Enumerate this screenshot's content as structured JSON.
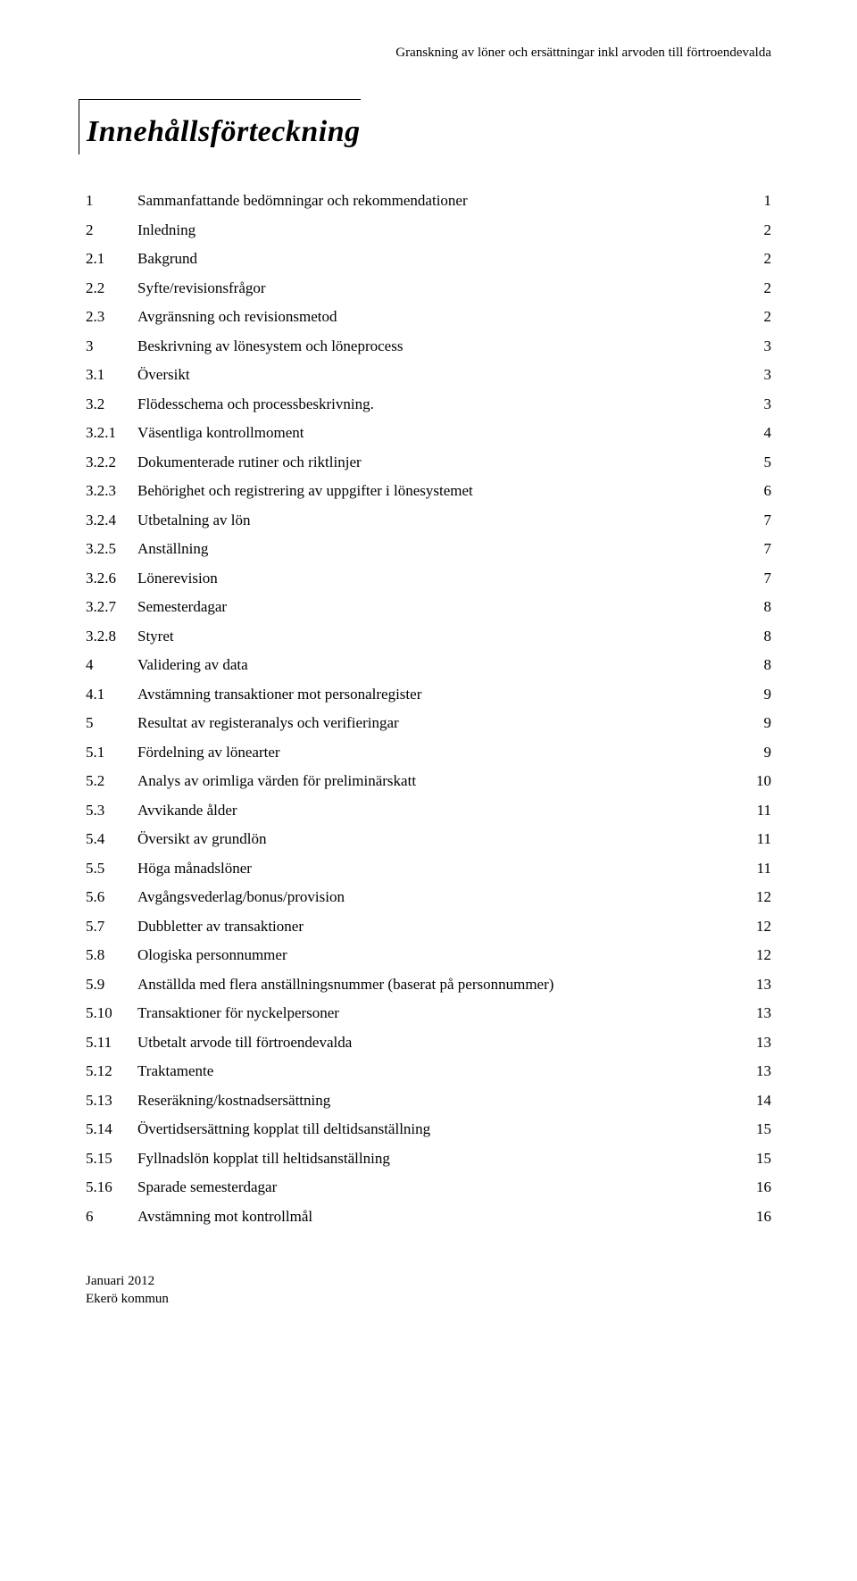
{
  "header": "Granskning av löner och ersättningar inkl arvoden till förtroendevalda",
  "title": "Innehållsförteckning",
  "toc": [
    {
      "lvl": 1,
      "num": "1",
      "label": "Sammanfattande bedömningar och rekommendationer",
      "page": "1"
    },
    {
      "lvl": 1,
      "num": "2",
      "label": "Inledning",
      "page": "2"
    },
    {
      "lvl": 2,
      "num": "2.1",
      "label": "Bakgrund",
      "page": "2"
    },
    {
      "lvl": 2,
      "num": "2.2",
      "label": "Syfte/revisionsfrågor",
      "page": "2"
    },
    {
      "lvl": 2,
      "num": "2.3",
      "label": "Avgränsning och revisionsmetod",
      "page": "2"
    },
    {
      "lvl": 1,
      "num": "3",
      "label": "Beskrivning av lönesystem och löneprocess",
      "page": "3"
    },
    {
      "lvl": 2,
      "num": "3.1",
      "label": "Översikt",
      "page": "3"
    },
    {
      "lvl": 2,
      "num": "3.2",
      "label": "Flödesschema och processbeskrivning.",
      "page": "3"
    },
    {
      "lvl": 3,
      "num": "3.2.1",
      "label": "Väsentliga kontrollmoment",
      "page": "4"
    },
    {
      "lvl": 3,
      "num": "3.2.2",
      "label": "Dokumenterade rutiner och riktlinjer",
      "page": "5"
    },
    {
      "lvl": 3,
      "num": "3.2.3",
      "label": "Behörighet och registrering av uppgifter i lönesystemet",
      "page": "6"
    },
    {
      "lvl": 3,
      "num": "3.2.4",
      "label": "Utbetalning av lön",
      "page": "7"
    },
    {
      "lvl": 3,
      "num": "3.2.5",
      "label": "Anställning",
      "page": "7"
    },
    {
      "lvl": 3,
      "num": "3.2.6",
      "label": "Lönerevision",
      "page": "7"
    },
    {
      "lvl": 3,
      "num": "3.2.7",
      "label": "Semesterdagar",
      "page": "8"
    },
    {
      "lvl": 3,
      "num": "3.2.8",
      "label": "Styret",
      "page": "8"
    },
    {
      "lvl": 1,
      "num": "4",
      "label": "Validering av data",
      "page": "8"
    },
    {
      "lvl": 2,
      "num": "4.1",
      "label": "Avstämning transaktioner mot personalregister",
      "page": "9"
    },
    {
      "lvl": 1,
      "num": "5",
      "label": "Resultat av registeranalys och verifieringar",
      "page": "9"
    },
    {
      "lvl": 2,
      "num": "5.1",
      "label": "Fördelning av lönearter",
      "page": "9"
    },
    {
      "lvl": 2,
      "num": "5.2",
      "label": "Analys av orimliga värden för preliminärskatt",
      "page": "10"
    },
    {
      "lvl": 2,
      "num": "5.3",
      "label": "Avvikande ålder",
      "page": "11"
    },
    {
      "lvl": 2,
      "num": "5.4",
      "label": "Översikt av grundlön",
      "page": "11"
    },
    {
      "lvl": 2,
      "num": "5.5",
      "label": "Höga månadslöner",
      "page": "11"
    },
    {
      "lvl": 2,
      "num": "5.6",
      "label": "Avgångsvederlag/bonus/provision",
      "page": "12"
    },
    {
      "lvl": 2,
      "num": "5.7",
      "label": "Dubbletter av transaktioner",
      "page": "12"
    },
    {
      "lvl": 2,
      "num": "5.8",
      "label": "Ologiska personnummer",
      "page": "12"
    },
    {
      "lvl": 2,
      "num": "5.9",
      "label": "Anställda med flera anställningsnummer (baserat på personnummer)",
      "page": "13"
    },
    {
      "lvl": 2,
      "num": "5.10",
      "label": "Transaktioner för nyckelpersoner",
      "page": "13"
    },
    {
      "lvl": 2,
      "num": "5.11",
      "label": "Utbetalt arvode till förtroendevalda",
      "page": "13"
    },
    {
      "lvl": 2,
      "num": "5.12",
      "label": "Traktamente",
      "page": "13"
    },
    {
      "lvl": 2,
      "num": "5.13",
      "label": "Reseräkning/kostnadsersättning",
      "page": "14"
    },
    {
      "lvl": 2,
      "num": "5.14",
      "label": "Övertidsersättning kopplat till deltidsanställning",
      "page": "15"
    },
    {
      "lvl": 2,
      "num": "5.15",
      "label": "Fyllnadslön kopplat till heltidsanställning",
      "page": "15"
    },
    {
      "lvl": 2,
      "num": "5.16",
      "label": "Sparade semesterdagar",
      "page": "16"
    },
    {
      "lvl": 1,
      "num": "6",
      "label": "Avstämning mot kontrollmål",
      "page": "16"
    }
  ],
  "footer": {
    "line1": "Januari 2012",
    "line2": "Ekerö kommun"
  }
}
